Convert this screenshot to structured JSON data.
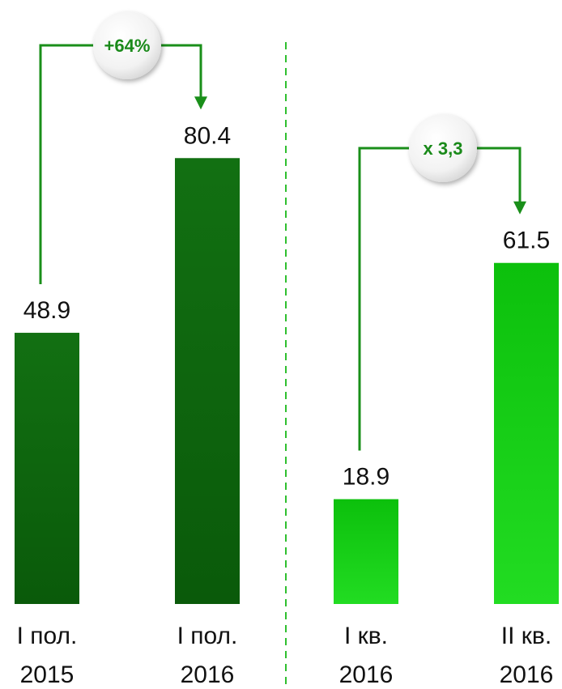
{
  "chart_data": {
    "type": "bar",
    "colors": {
      "dark_green": "#0a5a0a",
      "dark_green_light": "#127012",
      "bright_green": "#0cc00c",
      "bright_green_light": "#22dc22",
      "arrow_green": "#1a8f1a",
      "divider": "#2fbf2f"
    },
    "ylim": [
      0,
      90
    ],
    "bars": [
      {
        "tick_line1": "I пол.",
        "tick_line2": "2015",
        "value": 48.9,
        "label": "48.9",
        "style": "dark"
      },
      {
        "tick_line1": "I пол.",
        "tick_line2": "2016",
        "value": 80.4,
        "label": "80.4",
        "style": "dark"
      },
      {
        "tick_line1": "I кв.",
        "tick_line2": "2016",
        "value": 18.9,
        "label": "18.9",
        "style": "bright"
      },
      {
        "tick_line1": "II кв.",
        "tick_line2": "2016",
        "value": 61.5,
        "label": "61.5",
        "style": "bright"
      }
    ],
    "annotations": [
      {
        "from_bar": 0,
        "to_bar": 1,
        "text": "+64%"
      },
      {
        "from_bar": 2,
        "to_bar": 3,
        "text": "x 3,3"
      }
    ],
    "divider": {
      "style": "dashed",
      "between_bars": [
        1,
        2
      ]
    }
  }
}
